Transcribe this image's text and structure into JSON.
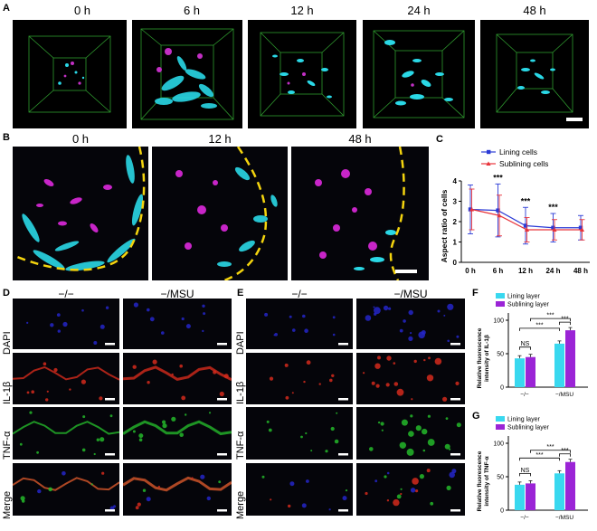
{
  "panel_a": {
    "label": "A",
    "timepoints": [
      "0 h",
      "6 h",
      "12 h",
      "24 h",
      "48 h"
    ]
  },
  "panel_b": {
    "label": "B",
    "timepoints": [
      "0 h",
      "12 h",
      "48 h"
    ]
  },
  "panel_c": {
    "label": "C",
    "colors": {
      "lining": "#2b3bd6",
      "sublining": "#e8343b"
    },
    "chart_data": {
      "type": "line",
      "ylabel": "Aspect ratio of cells",
      "x": [
        "0 h",
        "6 h",
        "12 h",
        "24 h",
        "48 h"
      ],
      "ylim": [
        0,
        4
      ],
      "yticks": [
        "0",
        "1",
        "2",
        "3",
        "4"
      ],
      "series": [
        {
          "name": "Lining cells",
          "values": [
            2.6,
            2.55,
            1.8,
            1.7,
            1.7
          ],
          "errors": [
            1.2,
            1.3,
            0.9,
            0.7,
            0.6
          ]
        },
        {
          "name": "Sublining cells",
          "values": [
            2.6,
            2.3,
            1.6,
            1.6,
            1.6
          ],
          "errors": [
            1.0,
            1.0,
            0.6,
            0.5,
            0.5
          ]
        }
      ],
      "annotations": [
        "***",
        "***",
        "***"
      ]
    }
  },
  "panel_d": {
    "label": "D",
    "columns": [
      "−/−",
      "−/MSU"
    ],
    "rows": [
      "DAPI",
      "IL-1β",
      "TNF-α",
      "Merge"
    ]
  },
  "panel_e": {
    "label": "E",
    "columns": [
      "−/−",
      "−/MSU"
    ],
    "rows": [
      "DAPI",
      "IL-1β",
      "TNF-α",
      "Merge"
    ]
  },
  "panel_f": {
    "label": "F",
    "chart_data": {
      "type": "bar",
      "ylabel": "Relative fluorescence intensity of IL-1β",
      "categories": [
        "−/−",
        "−/MSU"
      ],
      "ylim": [
        0,
        100
      ],
      "yticks": [
        "0",
        "50",
        "100"
      ],
      "series": [
        {
          "name": "Lining layer",
          "values": [
            43,
            65
          ]
        },
        {
          "name": "Sublining layer",
          "values": [
            45,
            85
          ]
        }
      ],
      "annotations": [
        "NS",
        "***",
        "***",
        "***"
      ]
    }
  },
  "panel_g": {
    "label": "G",
    "chart_data": {
      "type": "bar",
      "ylabel": "Relative fluorescence intensity of TNF-α",
      "categories": [
        "−/−",
        "−/MSU"
      ],
      "ylim": [
        0,
        100
      ],
      "yticks": [
        "0",
        "50",
        "100"
      ],
      "series": [
        {
          "name": "Lining layer",
          "values": [
            38,
            55
          ]
        },
        {
          "name": "Sublining layer",
          "values": [
            40,
            72
          ]
        }
      ],
      "annotations": [
        "NS",
        "***",
        "***",
        "***"
      ]
    }
  },
  "colors": {
    "lining_bar": "#39d8ef",
    "sublining_bar": "#9b24d6"
  }
}
